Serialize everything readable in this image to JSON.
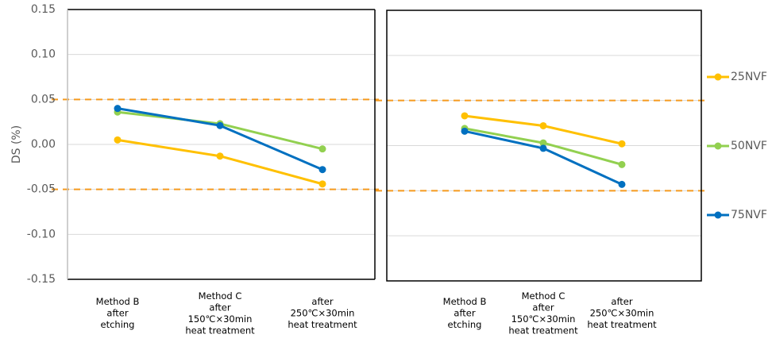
{
  "chart_data": {
    "type": "line",
    "ylabel": "DS (%)",
    "ylim": [
      -0.15,
      0.15
    ],
    "yticks": [
      "0.15",
      "0.10",
      "0.05",
      "0.00",
      "-0.05",
      "-0.10",
      "-0.15"
    ],
    "ytick_values": [
      0.15,
      0.1,
      0.05,
      0.0,
      -0.05,
      -0.1,
      -0.15
    ],
    "grid": true,
    "reference_lines": [
      0.05,
      -0.05
    ],
    "reference_line_color": "#F59A1E",
    "legend_position": "right",
    "categories": [
      [
        "Method B",
        "after",
        "etching"
      ],
      [
        "Method C",
        "after",
        "150℃×30min",
        "heat  treatment"
      ],
      [
        "after",
        "250℃×30min",
        "heat  treatment"
      ]
    ],
    "legend": [
      {
        "name": "25NVF",
        "color": "#FFC000"
      },
      {
        "name": "50NVF",
        "color": "#92D050"
      },
      {
        "name": "75NVF",
        "color": "#0070C0"
      }
    ],
    "panels": [
      {
        "series": [
          {
            "name": "25NVF",
            "color": "#FFC000",
            "values": [
              0.005,
              -0.013,
              -0.044
            ]
          },
          {
            "name": "50NVF",
            "color": "#92D050",
            "values": [
              0.036,
              0.023,
              -0.005
            ]
          },
          {
            "name": "75NVF",
            "color": "#0070C0",
            "values": [
              0.04,
              0.021,
              -0.028
            ]
          }
        ]
      },
      {
        "series": [
          {
            "name": "25NVF",
            "color": "#FFC000",
            "values": [
              0.033,
              0.022,
              0.002
            ]
          },
          {
            "name": "50NVF",
            "color": "#92D050",
            "values": [
              0.019,
              0.003,
              -0.021
            ]
          },
          {
            "name": "75NVF",
            "color": "#0070C0",
            "values": [
              0.016,
              -0.003,
              -0.043
            ]
          }
        ]
      }
    ]
  }
}
